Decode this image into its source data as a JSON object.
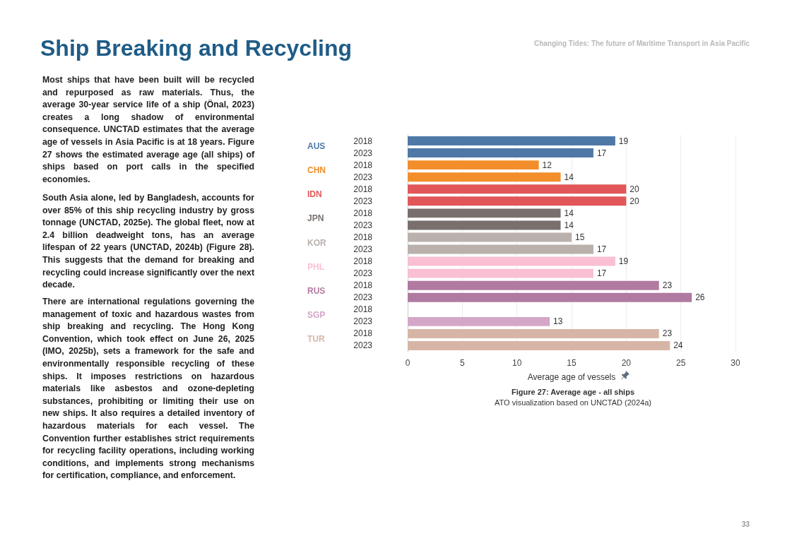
{
  "chart_data": {
    "type": "bar",
    "orientation": "horizontal",
    "stacked": true,
    "title": "Figure 27: Average age - all ships",
    "subtitle": "ATO visualization based on UNCTAD (2024a)",
    "xlabel": "Average age of vessels",
    "categories": [
      "2018",
      "2023",
      "2018",
      "2023",
      "2018",
      "2023",
      "2018",
      "2023",
      "2018",
      "2023",
      "2018",
      "2023",
      "2018",
      "2023",
      "2018",
      "2023",
      "2018",
      "2023"
    ],
    "series": [
      {
        "name": "AUS",
        "color": "#4e79a7",
        "values": [
          19,
          17,
          null,
          null,
          null,
          null,
          null,
          null,
          null,
          null,
          null,
          null,
          null,
          null,
          null,
          null,
          null,
          null
        ]
      },
      {
        "name": "CHN",
        "color": "#f28e2b",
        "values": [
          null,
          null,
          12,
          14,
          null,
          null,
          null,
          null,
          null,
          null,
          null,
          null,
          null,
          null,
          null,
          null,
          null,
          null
        ]
      },
      {
        "name": "IDN",
        "color": "#e15759",
        "values": [
          null,
          null,
          null,
          null,
          20,
          20,
          null,
          null,
          null,
          null,
          null,
          null,
          null,
          null,
          null,
          null,
          null,
          null
        ]
      },
      {
        "name": "JPN",
        "color": "#79706e",
        "values": [
          null,
          null,
          null,
          null,
          null,
          null,
          14,
          14,
          null,
          null,
          null,
          null,
          null,
          null,
          null,
          null,
          null,
          null
        ]
      },
      {
        "name": "KOR",
        "color": "#bab0ac",
        "values": [
          null,
          null,
          null,
          null,
          null,
          null,
          null,
          null,
          15,
          17,
          null,
          null,
          null,
          null,
          null,
          null,
          null,
          null
        ]
      },
      {
        "name": "PHL",
        "color": "#fabfd2",
        "values": [
          null,
          null,
          null,
          null,
          null,
          null,
          null,
          null,
          null,
          null,
          19,
          17,
          null,
          null,
          null,
          null,
          null,
          null
        ]
      },
      {
        "name": "RUS",
        "color": "#b07aa1",
        "values": [
          null,
          null,
          null,
          null,
          null,
          null,
          null,
          null,
          null,
          null,
          null,
          null,
          23,
          26,
          null,
          null,
          null,
          null
        ]
      },
      {
        "name": "SGP",
        "color": "#d4a6c8",
        "values": [
          null,
          null,
          null,
          null,
          null,
          null,
          null,
          null,
          null,
          null,
          null,
          null,
          null,
          null,
          null,
          13,
          null,
          null
        ]
      },
      {
        "name": "TUR",
        "color": "#d7b5a6",
        "values": [
          null,
          null,
          null,
          null,
          null,
          null,
          null,
          null,
          null,
          null,
          null,
          null,
          null,
          null,
          null,
          null,
          23,
          24
        ]
      }
    ],
    "xlim": [
      0,
      30
    ],
    "xticks": [
      0,
      5,
      10,
      15,
      20,
      25,
      30
    ],
    "grid": "x",
    "legend": false,
    "data_labels": true,
    "annotations": [
      "Changing Tides: The future of Maritime Transport in Asia Pacific",
      "Ship Breaking and Recycling",
      "Most ships that have been built will be recycled and repurposed as raw materials. Thus, the average 30-year service life of a ship (Önal, 2023) creates a long shadow of environmental consequence. UNCTAD estimates that the average age of vessels in Asia Pacific is at 18 years. Figure 27 shows the estimated average age (all ships) of ships based on port calls in the specified economies.",
      "South Asia alone, led by Bangladesh, accounts for over 85% of this ship recycling industry by gross tonnage (UNCTAD, 2025e). The global fleet, now at 2.4 billion deadweight tons, has an average lifespan of 22 years (UNCTAD, 2024b) (Figure 28). This suggests that the demand for breaking and recycling could increase significantly over the next decade.",
      "There are international regulations governing the management of toxic and hazardous wastes from ship breaking and recycling. The Hong Kong Convention, which took effect on June 26, 2025 (IMO, 2025b), sets a framework for the safe and environmentally responsible recycling of these ships. It imposes restrictions on hazardous materials like asbestos and ozone-depleting substances, prohibiting or limiting their use on new ships. It also requires a detailed inventory of hazardous materials for each vessel. The Convention further establishes strict requirements for recycling facility operations, including working conditions, and implements strong mechanisms for certification, compliance, and enforcement.",
      "33"
    ]
  }
}
